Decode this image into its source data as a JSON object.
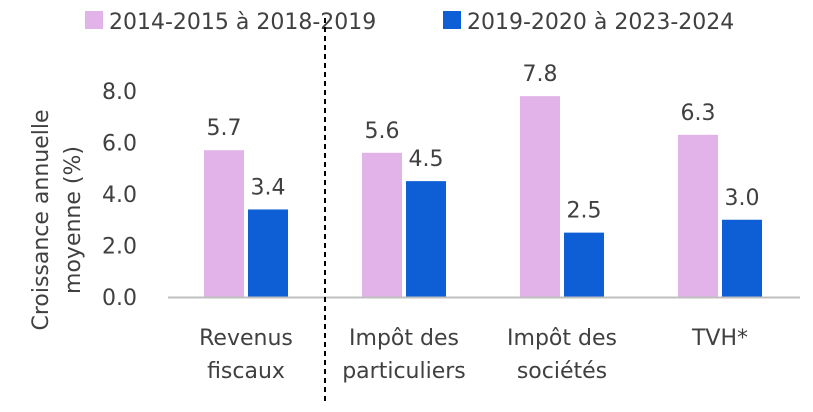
{
  "chart_data": {
    "type": "bar",
    "categories": [
      [
        "Revenus",
        "fiscaux"
      ],
      [
        "Impôt des",
        "particuliers"
      ],
      [
        "Impôt des",
        "sociétés"
      ],
      [
        "TVH*"
      ]
    ],
    "series": [
      {
        "name": "2014-2015 à 2018-2019",
        "color": "#E1B3E8",
        "values": [
          5.7,
          5.6,
          7.8,
          6.3
        ]
      },
      {
        "name": "2019-2020 à 2023-2024",
        "color": "#0E5FD6",
        "values": [
          3.4,
          4.5,
          2.5,
          3.0
        ]
      }
    ],
    "value_labels": [
      [
        "5.7",
        "5.6",
        "7.8",
        "6.3"
      ],
      [
        "3.4",
        "4.5",
        "2.5",
        "3.0"
      ]
    ],
    "ylabel": [
      "Croissance annuelle",
      "moyenne (%)"
    ],
    "yticks": [
      "0.0",
      "2.0",
      "4.0",
      "6.0",
      "8.0"
    ],
    "ylim": [
      0,
      8
    ],
    "grid": false,
    "legend_position": "top",
    "separator_after_category": 0,
    "axis_color": "#bfbfbf",
    "separator_color": "#000000"
  }
}
